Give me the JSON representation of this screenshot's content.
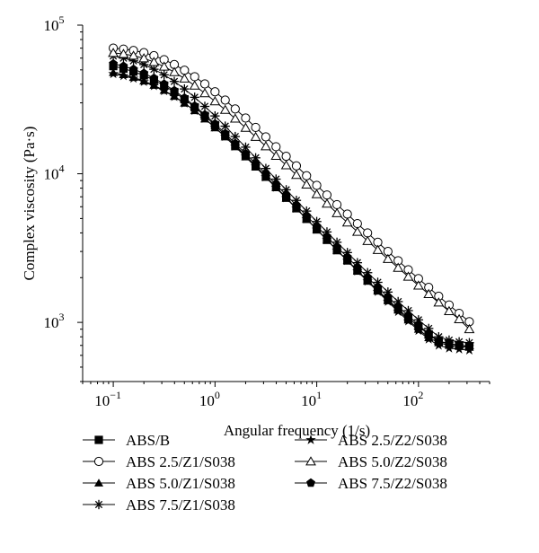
{
  "chart_data": {
    "type": "line",
    "x_scale": "log",
    "y_scale": "log",
    "xlabel": "Angular frequency (1/s)",
    "ylabel": "Complex viscosity (Pa·s)",
    "xlim": [
      0.05,
      500
    ],
    "ylim": [
      400,
      100000
    ],
    "x_ticks": [
      {
        "value": 0.1,
        "base": "10",
        "exp": "−1"
      },
      {
        "value": 1,
        "base": "10",
        "exp": "0"
      },
      {
        "value": 10,
        "base": "10",
        "exp": "1"
      },
      {
        "value": 100,
        "base": "10",
        "exp": "2"
      }
    ],
    "y_ticks": [
      {
        "value": 1000,
        "base": "10",
        "exp": "3"
      },
      {
        "value": 10000,
        "base": "10",
        "exp": "4"
      },
      {
        "value": 100000,
        "base": "10",
        "exp": "5"
      }
    ],
    "grid": false,
    "legend_position": "bottom",
    "x": [
      0.1,
      0.126,
      0.158,
      0.2,
      0.251,
      0.316,
      0.398,
      0.501,
      0.631,
      0.794,
      1.0,
      1.26,
      1.58,
      2.0,
      2.51,
      3.16,
      3.98,
      5.01,
      6.31,
      7.94,
      10.0,
      12.6,
      15.8,
      20.0,
      25.1,
      31.6,
      39.8,
      50.1,
      63.1,
      79.4,
      100,
      126,
      158,
      200,
      251,
      316
    ],
    "series": [
      {
        "name": "ABS/B",
        "marker": "square-filled",
        "values": [
          53000,
          51000,
          48700,
          45900,
          42700,
          39200,
          35500,
          31700,
          28000,
          24500,
          21200,
          18200,
          15600,
          13300,
          11300,
          9600,
          8150,
          6900,
          5860,
          4970,
          4220,
          3590,
          3060,
          2610,
          2230,
          1910,
          1640,
          1420,
          1230,
          1070,
          940,
          830,
          740,
          720,
          700,
          690
        ]
      },
      {
        "name": "ABS 2.5/Z1/S038",
        "marker": "circle-open",
        "values": [
          70000,
          69000,
          67500,
          65300,
          62300,
          58600,
          54300,
          49700,
          45000,
          40200,
          35600,
          31300,
          27300,
          23700,
          20500,
          17700,
          15200,
          13100,
          11300,
          9700,
          8350,
          7200,
          6200,
          5350,
          4620,
          4000,
          3460,
          3000,
          2600,
          2260,
          1970,
          1720,
          1500,
          1310,
          1150,
          1010
        ]
      },
      {
        "name": "ABS 5.0/Z1/S038",
        "marker": "triangle-filled",
        "values": [
          48000,
          46500,
          44500,
          42100,
          39400,
          36400,
          33200,
          29900,
          26600,
          23400,
          20400,
          17700,
          15200,
          13000,
          11100,
          9450,
          8050,
          6850,
          5830,
          4960,
          4220,
          3590,
          3060,
          2610,
          2230,
          1900,
          1630,
          1400,
          1210,
          1040,
          900,
          790,
          730,
          700,
          690,
          680
        ]
      },
      {
        "name": "ABS 7.5/Z1/S038",
        "marker": "asterisk",
        "values": [
          62000,
          60000,
          57500,
          54300,
          50500,
          46300,
          41800,
          37200,
          32700,
          28400,
          24500,
          20900,
          17800,
          15100,
          12800,
          10850,
          9200,
          7800,
          6620,
          5610,
          4770,
          4060,
          3460,
          2950,
          2520,
          2160,
          1860,
          1600,
          1380,
          1200,
          1040,
          910,
          800,
          760,
          740,
          730
        ]
      },
      {
        "name": "ABS 2.5/Z2/S038",
        "marker": "star-filled",
        "values": [
          47000,
          45600,
          43800,
          41600,
          39000,
          36100,
          33000,
          29800,
          26600,
          23500,
          20500,
          17800,
          15300,
          13100,
          11200,
          9500,
          8080,
          6870,
          5840,
          4960,
          4220,
          3590,
          3050,
          2600,
          2210,
          1890,
          1610,
          1380,
          1180,
          1020,
          880,
          770,
          700,
          670,
          660,
          650
        ]
      },
      {
        "name": "ABS 5.0/Z2/S038",
        "marker": "triangle-open",
        "values": [
          65000,
          64000,
          62300,
          59800,
          56500,
          52600,
          48300,
          43700,
          39200,
          34800,
          30700,
          26900,
          23500,
          20400,
          17700,
          15300,
          13200,
          11400,
          9820,
          8460,
          7290,
          6290,
          5430,
          4700,
          4070,
          3530,
          3070,
          2670,
          2330,
          2030,
          1770,
          1550,
          1360,
          1190,
          1050,
          900
        ]
      },
      {
        "name": "ABS 7.5/Z2/S038",
        "marker": "pentagon-filled",
        "values": [
          55000,
          53000,
          50500,
          47500,
          44000,
          40200,
          36300,
          32400,
          28600,
          25000,
          21700,
          18700,
          16000,
          13700,
          11700,
          9950,
          8460,
          7200,
          6130,
          5210,
          4440,
          3780,
          3220,
          2750,
          2350,
          2010,
          1720,
          1480,
          1280,
          1110,
          960,
          840,
          750,
          720,
          700,
          690
        ]
      }
    ]
  }
}
